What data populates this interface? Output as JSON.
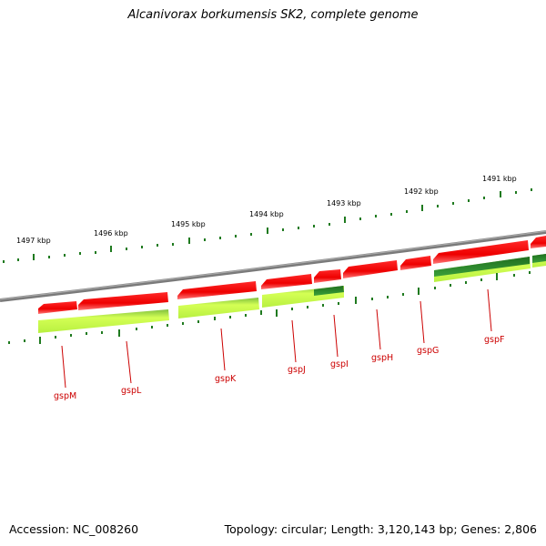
{
  "title": "Alcanivorax borkumensis SK2, complete genome",
  "footer": {
    "accession": "Accession: NC_008260",
    "topology": "Topology: circular; Length: 3,120,143 bp; Genes: 2,806"
  },
  "ruler": {
    "labels": [
      "1497 kbp",
      "1496 kbp",
      "1495 kbp",
      "1494 kbp",
      "1493 kbp",
      "1492 kbp",
      "1491 kbp"
    ]
  },
  "genes": [
    "gspM",
    "gspL",
    "gspK",
    "gspJ",
    "gspI",
    "gspH",
    "gspG",
    "gspF"
  ],
  "colors": {
    "gene_forward": "#ee0000",
    "gene_light": "#ff6666",
    "orf_light": "#ccff44",
    "orf_dark": "#2d8a2d",
    "backbone": "#808080",
    "ticks": "#1f7a1f",
    "label": "#cc0000"
  }
}
